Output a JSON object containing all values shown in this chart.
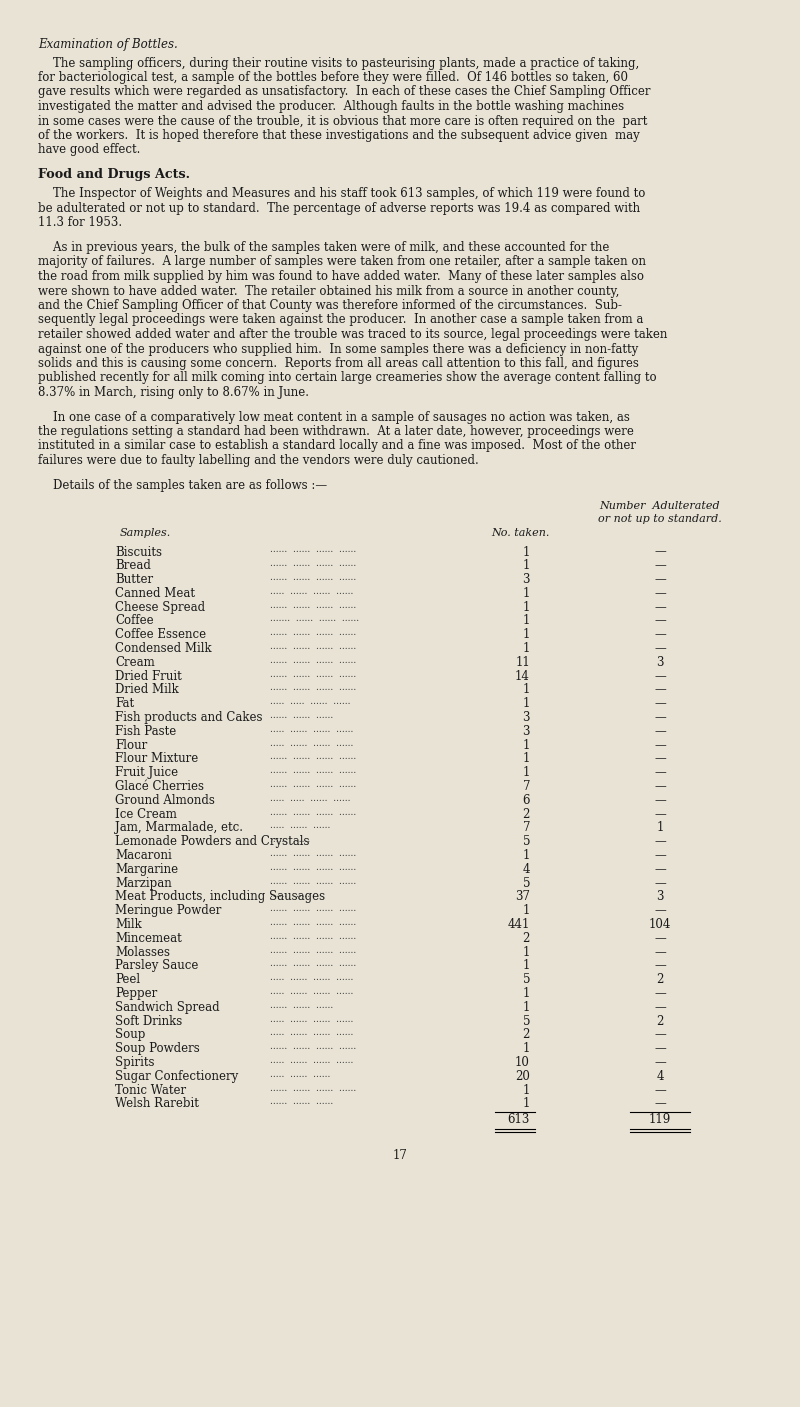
{
  "bg_color": "#e8e3d5",
  "title_italic": "Examination of Bottles.",
  "para1_lines": [
    "    The sampling officers, during their routine visits to pasteurising plants, made a practice of taking,",
    "for bacteriological test, a sample of the bottles before they were filled.  Of 146 bottles so taken, 60",
    "gave results which were regarded as unsatisfactory.  In each of these cases the Chief Sampling Officer",
    "investigated the matter and advised the producer.  Although faults in the bottle washing machines",
    "in some cases were the cause of the trouble, it is obvious that more care is often required on the  part",
    "of the workers.  It is hoped therefore that these investigations and the subsequent advice given  may",
    "have good effect."
  ],
  "heading2": "Food and Drugs Acts.",
  "para2_lines": [
    "    The Inspector of Weights and Measures and his staff took 613 samples, of which 119 were found to",
    "be adulterated or not up to standard.  The percentage of adverse reports was 19.4 as compared with",
    "11.3 for 1953."
  ],
  "para3_lines": [
    "    As in previous years, the bulk of the samples taken were of milk, and these accounted for the",
    "majority of failures.  A large number of samples were taken from one retailer, after a sample taken on",
    "the road from milk supplied by him was found to have added water.  Many of these later samples also",
    "were shown to have added water.  The retailer obtained his milk from a source in another county,",
    "and the Chief Sampling Officer of that County was therefore informed of the circumstances.  Sub-",
    "sequently legal proceedings were taken against the producer.  In another case a sample taken from a",
    "retailer showed added water and after the trouble was traced to its source, legal proceedings were taken",
    "against one of the producers who supplied him.  In some samples there was a deficiency in non-fatty",
    "solids and this is causing some concern.  Reports from all areas call attention to this fall, and figures",
    "published recently for all milk coming into certain large creameries show the average content falling to",
    "8.37% in March, rising only to 8.67% in June."
  ],
  "para4_lines": [
    "    In one case of a comparatively low meat content in a sample of sausages no action was taken, as",
    "the regulations setting a standard had been withdrawn.  At a later date, however, proceedings were",
    "instituted in a similar case to establish a standard locally and a fine was imposed.  Most of the other",
    "failures were due to faulty labelling and the vendors were duly cautioned."
  ],
  "table_intro": "Details of the samples taken are as follows :—",
  "samples": [
    [
      "Biscuits",
      "......",
      "......",
      "......",
      "......",
      "1",
      "—"
    ],
    [
      "Bread",
      "......",
      "......",
      "......",
      "......",
      "1",
      "—"
    ],
    [
      "Butter",
      "......",
      "......",
      "......",
      "......",
      "3",
      "—"
    ],
    [
      "Canned Meat",
      ".....",
      "......",
      "......",
      "......",
      "1",
      "—"
    ],
    [
      "Cheese Spread",
      "......",
      "......",
      "......",
      "......",
      "1",
      "—"
    ],
    [
      "Coffee",
      ".......",
      "......",
      "......",
      "......",
      "1",
      "—"
    ],
    [
      "Coffee Essence",
      "......",
      "......",
      "......",
      "......",
      "1",
      "—"
    ],
    [
      "Condensed Milk",
      "......",
      "......",
      "......",
      "......",
      "1",
      "—"
    ],
    [
      "Cream",
      "......",
      "......",
      "......",
      "......",
      "11",
      "3"
    ],
    [
      "Dried Fruit",
      "......",
      "......",
      "......",
      "......",
      "14",
      "—"
    ],
    [
      "Dried Milk",
      "......",
      "......",
      "......",
      "......",
      "1",
      "—"
    ],
    [
      "Fat",
      ".....",
      ".....",
      "......",
      "......",
      "1",
      "—"
    ],
    [
      "Fish products and Cakes",
      "......",
      "......",
      "......",
      "3",
      "—"
    ],
    [
      "Fish Paste",
      ".....",
      "......",
      "......",
      "......",
      "3",
      "—"
    ],
    [
      "Flour",
      ".....",
      "......",
      "......",
      "......",
      "1",
      "—"
    ],
    [
      "Flour Mixture",
      "......",
      "......",
      "......",
      "......",
      "1",
      "—"
    ],
    [
      "Fruit Juice",
      "......",
      "......",
      "......",
      "......",
      "1",
      "—"
    ],
    [
      "Glacé Cherries",
      "......",
      "......",
      "......",
      "......",
      "7",
      "—"
    ],
    [
      "Ground Almonds",
      ".....",
      ".....",
      "......",
      "......",
      "6",
      "—"
    ],
    [
      "Ice Cream",
      "......",
      "......",
      "......",
      "......",
      "2",
      "—"
    ],
    [
      "Jam, Marmalade, etc.",
      ".....",
      "......",
      "......",
      "7",
      "1"
    ],
    [
      "Lemonade Powders and Crystals",
      "......",
      "......",
      "5",
      "—"
    ],
    [
      "Macaroni",
      "......",
      "......",
      "......",
      "......",
      "1",
      "—"
    ],
    [
      "Margarine",
      "......",
      "......",
      "......",
      "......",
      "4",
      "—"
    ],
    [
      "Marzipan",
      "......",
      "......",
      "......",
      "......",
      "5",
      "—"
    ],
    [
      "Meat Products, including Sausages",
      "......",
      "......",
      "37",
      "3"
    ],
    [
      "Meringue Powder",
      "......",
      "......",
      "......",
      "......",
      "1",
      "—"
    ],
    [
      "Milk",
      "......",
      "......",
      "......",
      "......",
      "441",
      "104"
    ],
    [
      "Mincemeat",
      "......",
      "......",
      "......",
      "......",
      "2",
      "—"
    ],
    [
      "Molasses",
      "......",
      "......",
      "......",
      "......",
      "1",
      "—"
    ],
    [
      "Parsley Sauce",
      "......",
      "......",
      "......",
      "......",
      "1",
      "—"
    ],
    [
      "Peel",
      ".....",
      "......",
      "......",
      "......",
      "5",
      "2"
    ],
    [
      "Pepper",
      ".....",
      "......",
      "......",
      "......",
      "1",
      "—"
    ],
    [
      "Sandwich Spread",
      "......",
      "......",
      "......",
      "1",
      "—"
    ],
    [
      "Soft Drinks",
      ".....",
      "......",
      "......",
      "......",
      "5",
      "2"
    ],
    [
      "Soup",
      ".....",
      "......",
      "......",
      "......",
      "2",
      "—"
    ],
    [
      "Soup Powders",
      "......",
      "......",
      "......",
      "......",
      "1",
      "—"
    ],
    [
      "Spirits",
      ".....",
      "......",
      "......",
      "......",
      "10",
      "—"
    ],
    [
      "Sugar Confectionery",
      ".....",
      "......",
      "......",
      "20",
      "4"
    ],
    [
      "Tonic Water",
      "......",
      "......",
      "......",
      "......",
      "1",
      "—"
    ],
    [
      "Welsh Rarebit",
      "......",
      "......",
      "......",
      "1",
      "—"
    ]
  ],
  "total_no": "613",
  "total_adulterated": "119",
  "page_number": "17"
}
